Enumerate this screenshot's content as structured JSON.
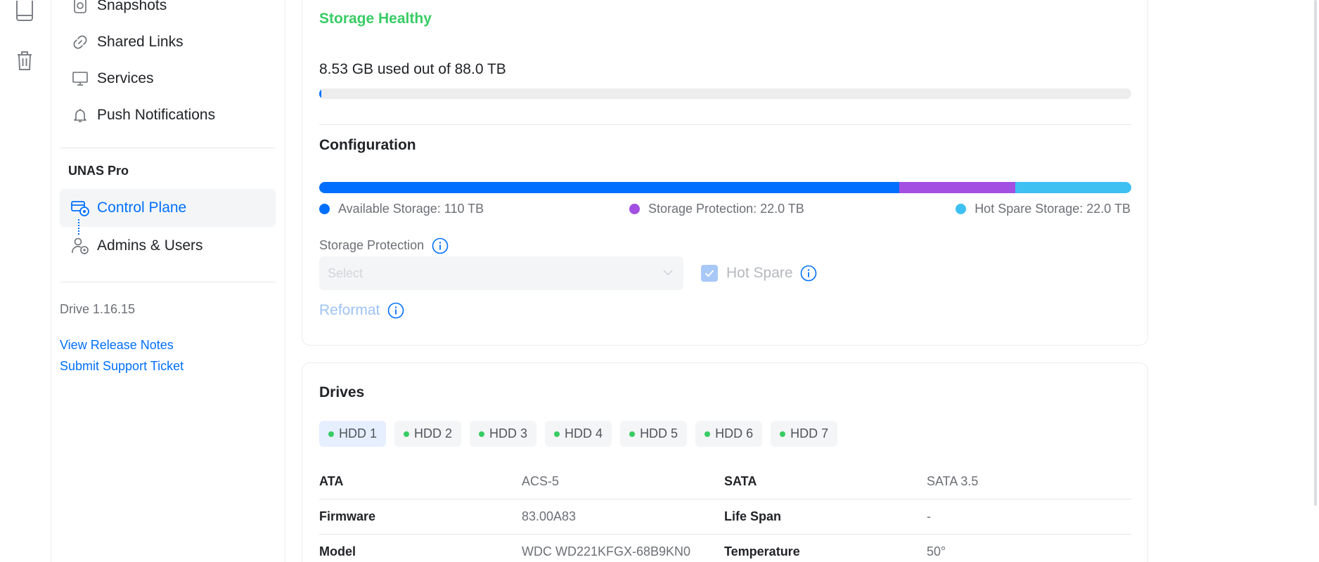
{
  "rail": {
    "icons": [
      "drive-icon",
      "trash-icon"
    ]
  },
  "sidebar": {
    "items": [
      {
        "label": "Snapshots",
        "icon": "snapshot-icon"
      },
      {
        "label": "Shared Links",
        "icon": "link-icon"
      },
      {
        "label": "Services",
        "icon": "monitor-icon"
      },
      {
        "label": "Push Notifications",
        "icon": "bell-icon"
      }
    ],
    "section_title": "UNAS Pro",
    "section_items": [
      {
        "label": "Control Plane",
        "icon": "control-plane-icon",
        "active": true
      },
      {
        "label": "Admins & Users",
        "icon": "admin-user-icon",
        "active": false
      }
    ],
    "version": "Drive 1.16.15",
    "links": {
      "release_notes": "View Release Notes",
      "support": "Submit Support Ticket"
    }
  },
  "storage": {
    "status": "Storage Healthy",
    "usage_text": "8.53 GB used out of 88.0 TB",
    "used_fraction": 0.002
  },
  "configuration": {
    "title": "Configuration",
    "segments": [
      {
        "label": "Available Storage: 110 TB",
        "value_tb": 110,
        "color": "#006fff"
      },
      {
        "label": "Storage Protection: 22.0 TB",
        "value_tb": 22,
        "color": "#a24fe2"
      },
      {
        "label": "Hot Spare Storage: 22.0 TB",
        "value_tb": 22,
        "color": "#3ec0f3"
      }
    ],
    "protection_label": "Storage Protection",
    "select_placeholder": "Select",
    "hot_spare_label": "Hot Spare",
    "hot_spare_checked": true,
    "reformat_label": "Reformat"
  },
  "drives": {
    "title": "Drives",
    "tabs": [
      "HDD 1",
      "HDD 2",
      "HDD 3",
      "HDD 4",
      "HDD 5",
      "HDD 6",
      "HDD 7"
    ],
    "active_tab": 0,
    "status_color": "#38cc65",
    "rows": [
      {
        "k1": "ATA",
        "v1": "ACS-5",
        "k2": "SATA",
        "v2": "SATA 3.5"
      },
      {
        "k1": "Firmware",
        "v1": "83.00A83",
        "k2": "Life Span",
        "v2": "-"
      },
      {
        "k1": "Model",
        "v1": "WDC WD221KFGX-68B9KN0",
        "k2": "Temperature",
        "v2": "50°"
      }
    ]
  }
}
